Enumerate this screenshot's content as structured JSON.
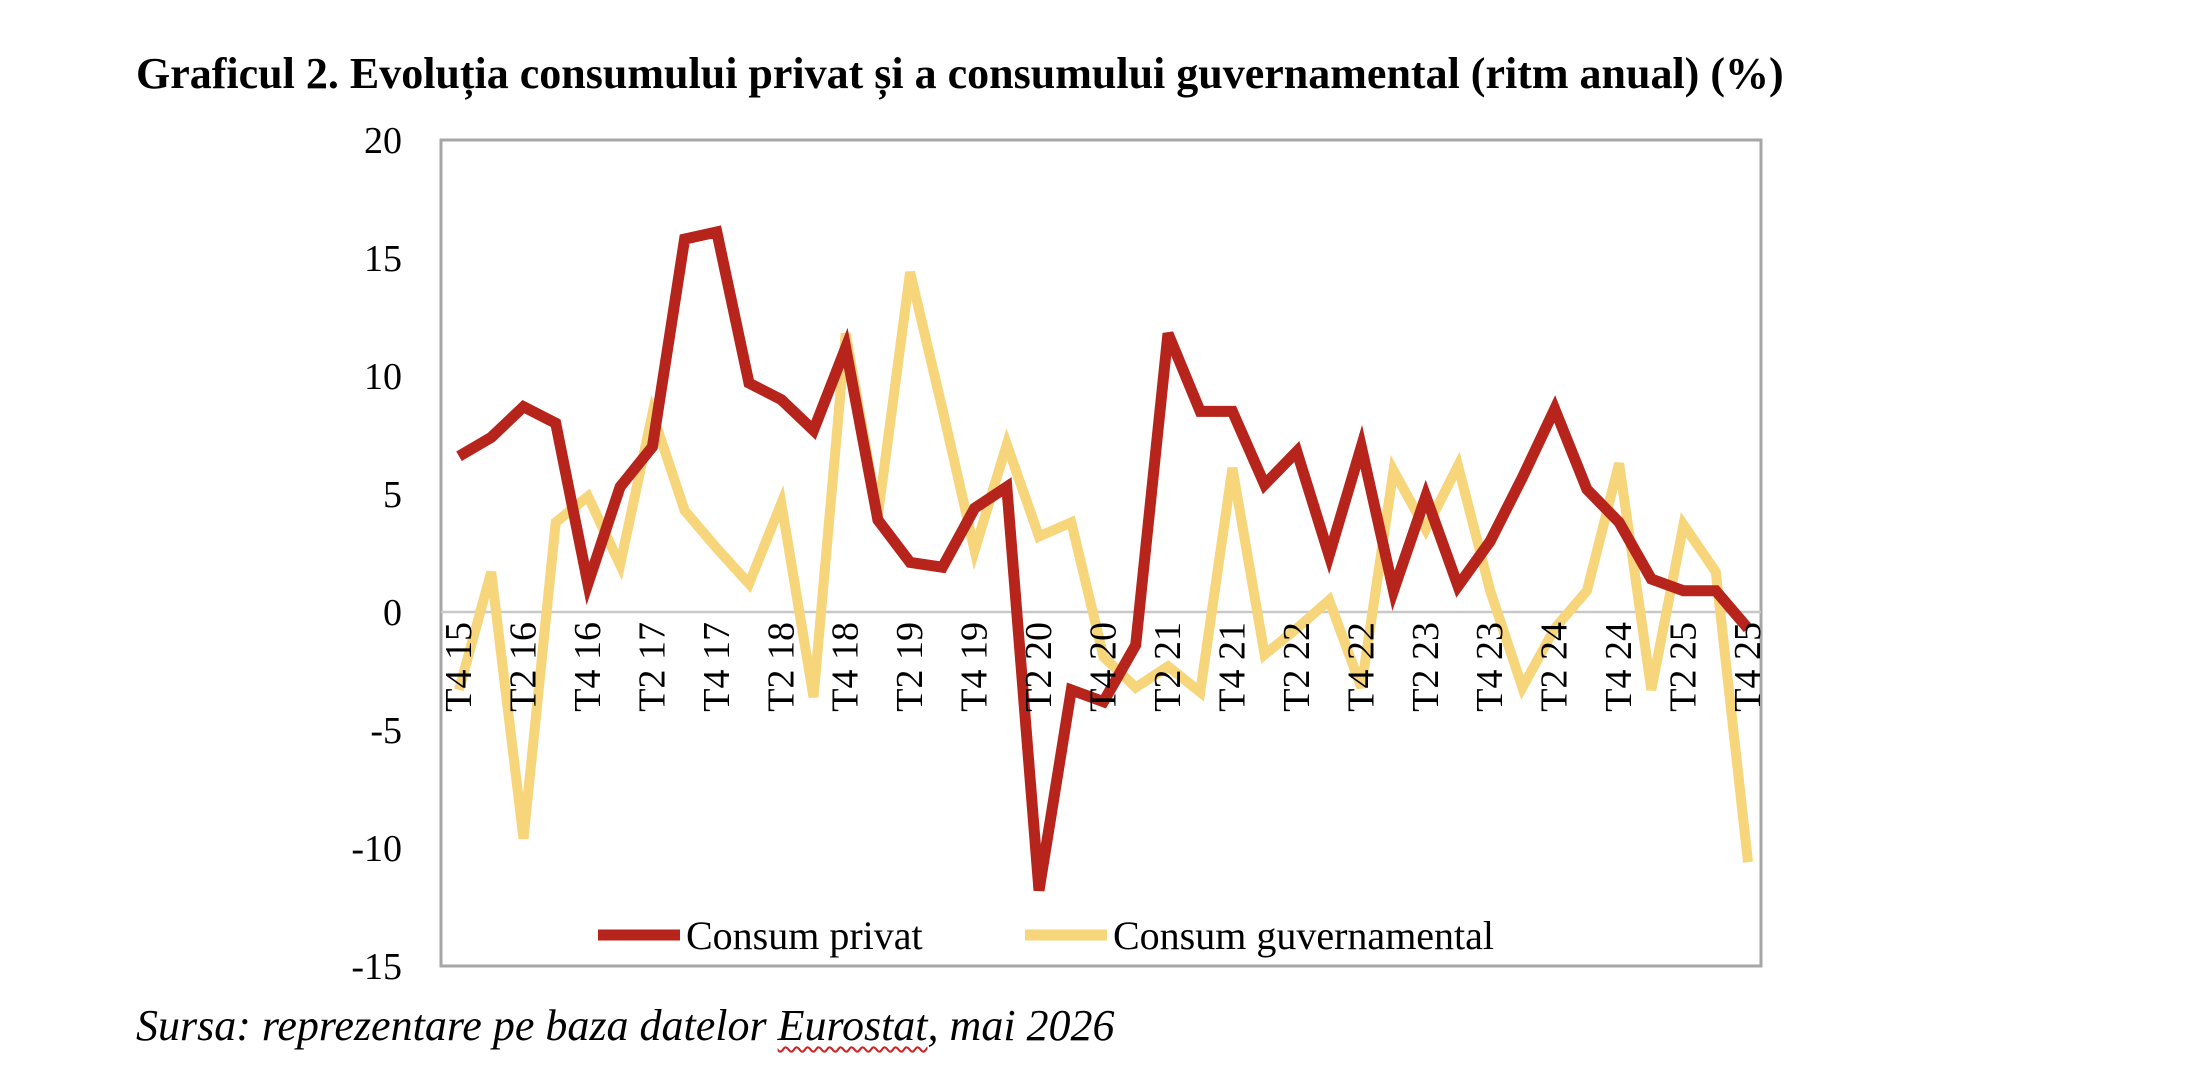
{
  "title": "Graficul 2. Evoluția consumului privat și a consumului guvernamental (ritm anual) (%)",
  "source": {
    "prefix": "Sursa: reprezentare pe baza datelor ",
    "highlight": "Eurostat",
    "suffix": ", mai 2026"
  },
  "chart_data": {
    "type": "line",
    "x": [
      "T4 15",
      "T1 16",
      "T2 16",
      "T3 16",
      "T4 16",
      "T1 17",
      "T2 17",
      "T3 17",
      "T4 17",
      "T1 18",
      "T2 18",
      "T3 18",
      "T4 18",
      "T1 19",
      "T2 19",
      "T3 19",
      "T4 19",
      "T1 20",
      "T2 20",
      "T3 20",
      "T4 20",
      "T1 21",
      "T2 21",
      "T3 21",
      "T4 21",
      "T1 22",
      "T2 22",
      "T3 22",
      "T4 22",
      "T1 23",
      "T2 23",
      "T3 23",
      "T4 23",
      "T1 24",
      "T2 24",
      "T3 24",
      "T4 24",
      "T1 25",
      "T2 25",
      "T3 25",
      "T4 25"
    ],
    "tick_labels_shown": [
      "T4 15",
      "T2 16",
      "T4 16",
      "T2 17",
      "T4 17",
      "T2 18",
      "T4 18",
      "T2 19",
      "T4 19",
      "T2 20",
      "T4 20",
      "T2 21",
      "T4 21",
      "T2 22",
      "T4 22",
      "T2 23",
      "T4 23",
      "T2 24",
      "T4 24",
      "T2 25",
      "T4 25"
    ],
    "series": [
      {
        "name": "Consum privat",
        "color": "#b7241b",
        "values": [
          6.6,
          7.4,
          8.7,
          8.0,
          1.2,
          5.3,
          7.0,
          15.8,
          16.1,
          9.7,
          9.0,
          7.7,
          11.2,
          3.9,
          2.1,
          1.9,
          4.4,
          5.3,
          -11.8,
          -3.3,
          -3.8,
          -1.4,
          11.8,
          8.5,
          8.5,
          5.4,
          6.8,
          2.4,
          7.0,
          0.9,
          4.9,
          1.1,
          3.0,
          5.7,
          8.6,
          5.2,
          3.8,
          1.4,
          0.9,
          0.9,
          -0.7
        ]
      },
      {
        "name": "Consum guvernamental",
        "color": "#f7d57a",
        "values": [
          -3.3,
          1.7,
          -9.6,
          3.8,
          4.9,
          2.0,
          8.4,
          4.3,
          2.7,
          1.2,
          4.6,
          -3.6,
          11.8,
          4.1,
          14.4,
          8.6,
          2.6,
          7.1,
          3.2,
          3.8,
          -1.9,
          -3.2,
          -2.3,
          -3.4,
          6.1,
          -1.8,
          -0.7,
          0.5,
          -3.2,
          6.0,
          3.5,
          6.2,
          0.9,
          -3.2,
          -0.7,
          0.9,
          6.3,
          -3.3,
          3.7,
          1.7,
          -10.6
        ]
      }
    ],
    "ylim": [
      -15,
      20
    ],
    "yticks": [
      -15,
      -10,
      -5,
      0,
      5,
      10,
      15,
      20
    ],
    "grid": false,
    "legend": "bottom-center",
    "xlabel": "",
    "ylabel": ""
  }
}
